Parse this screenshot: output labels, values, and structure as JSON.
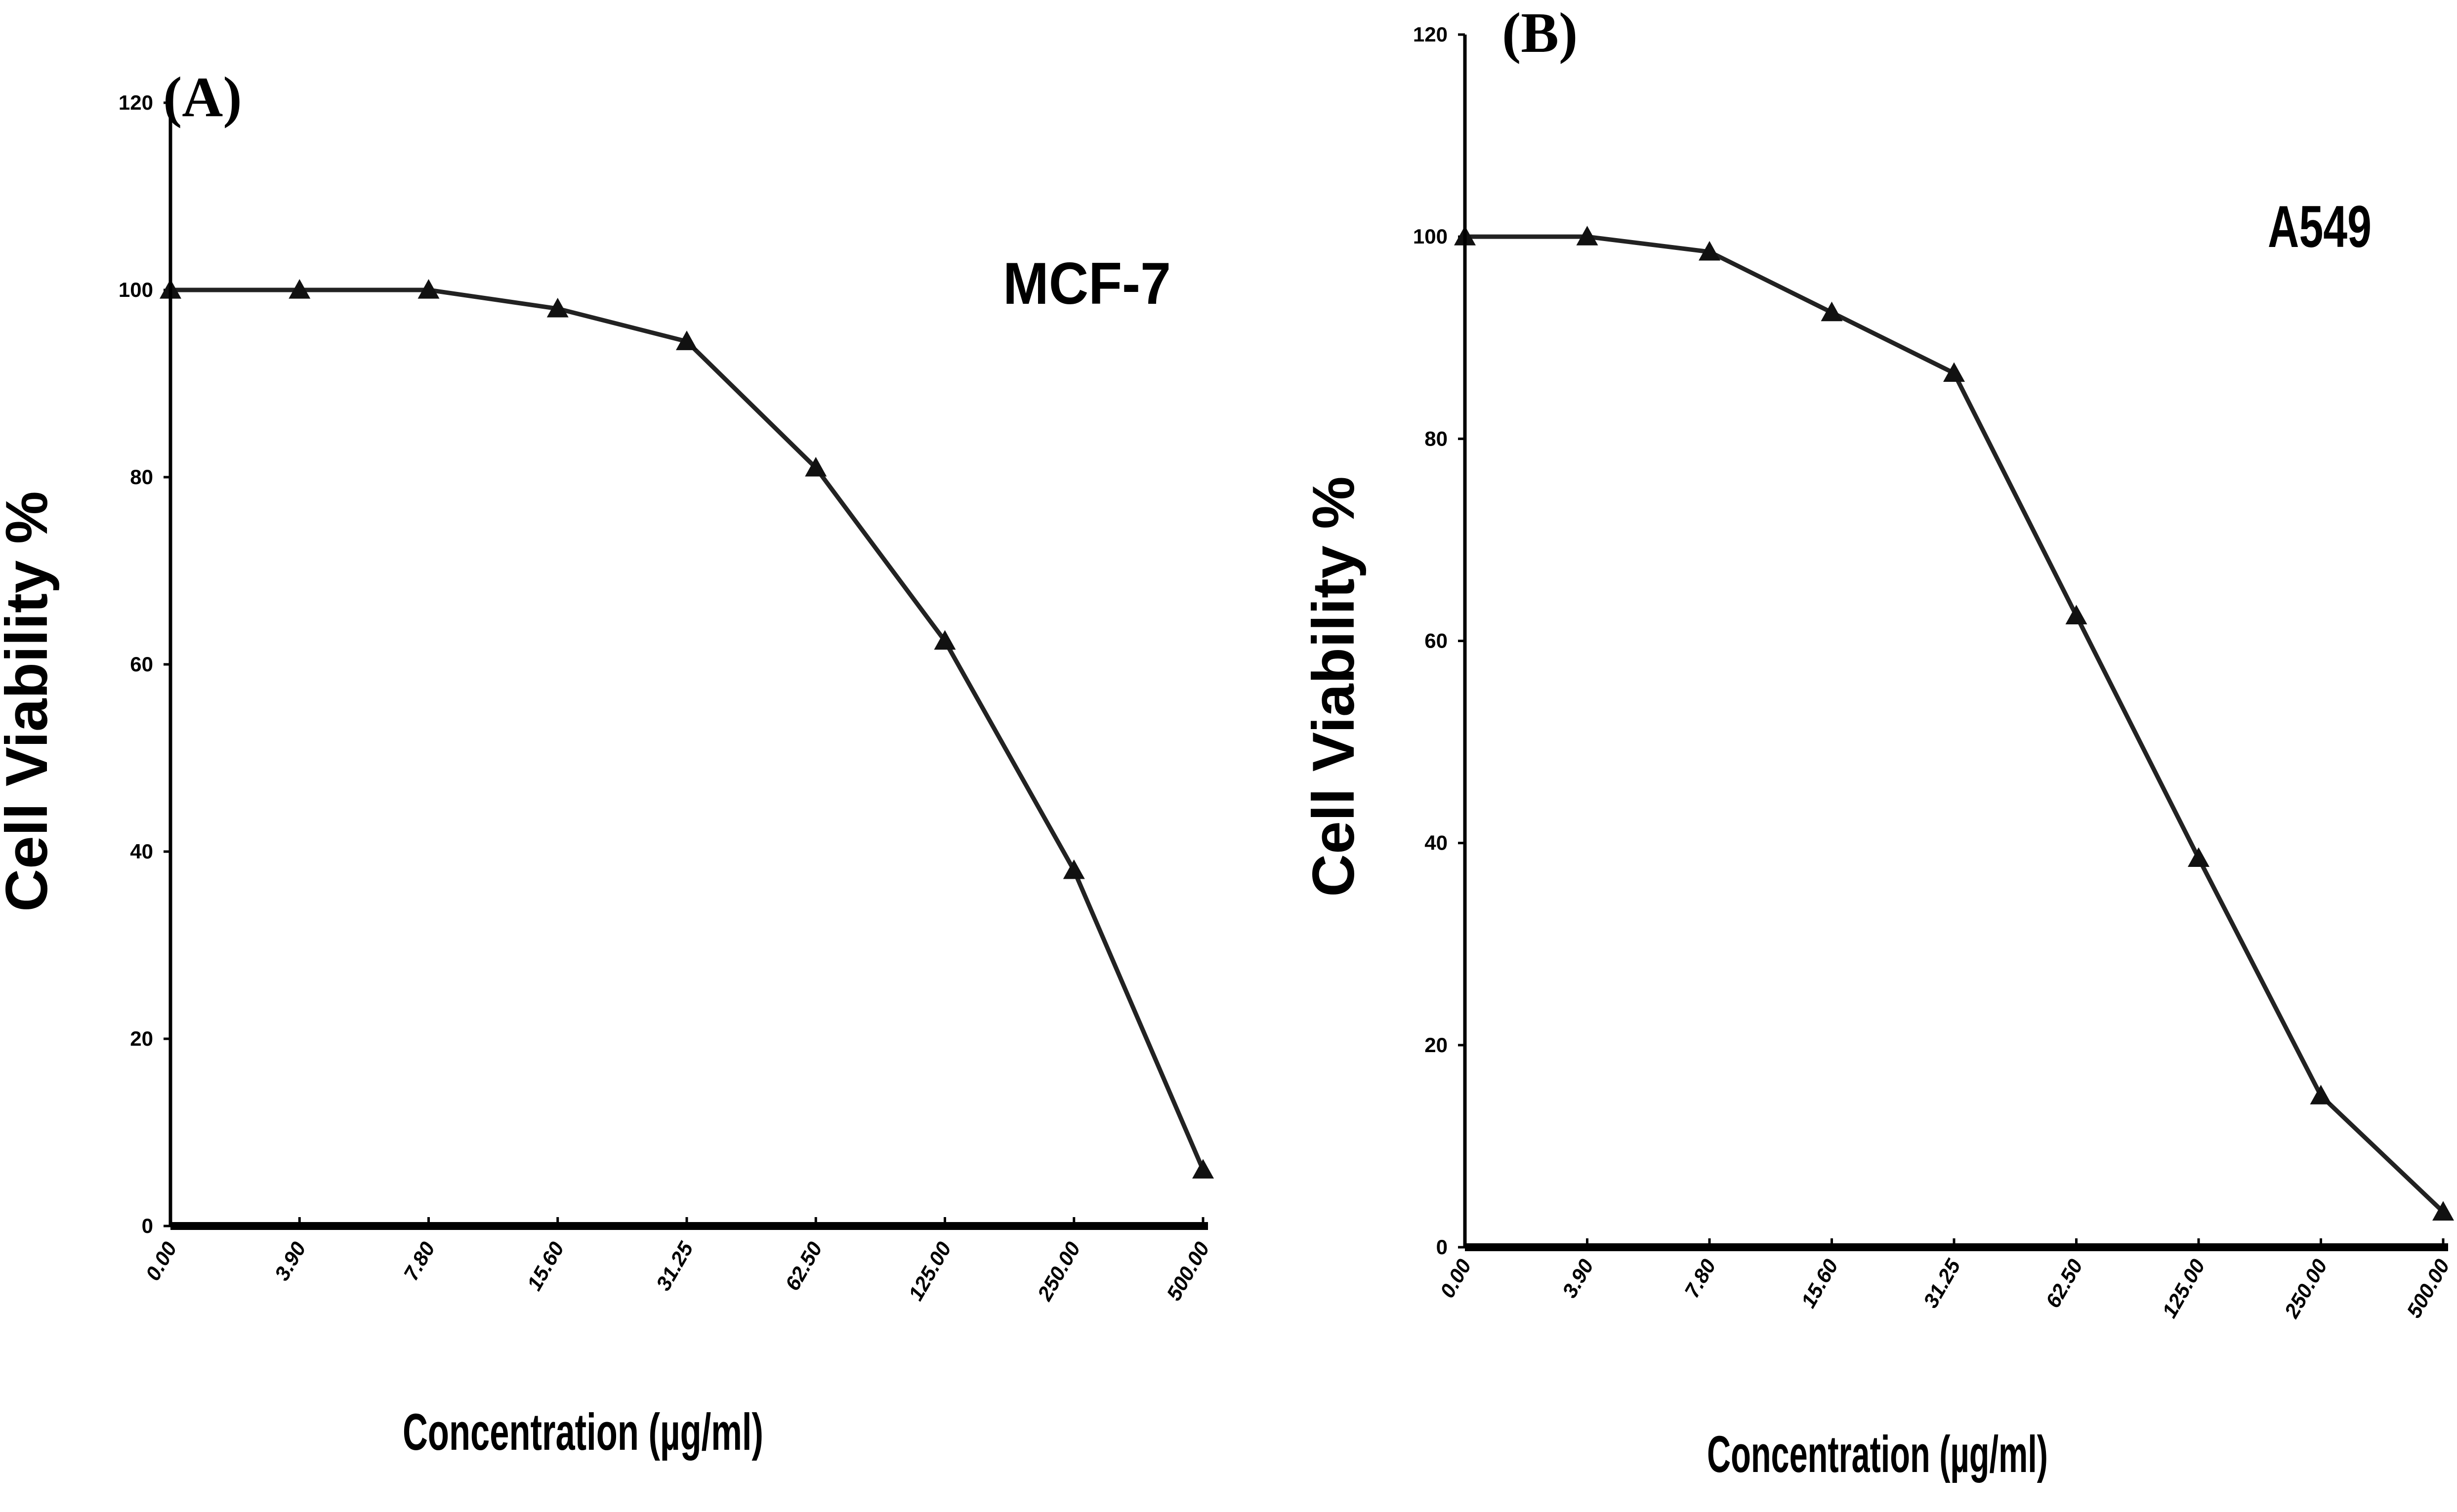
{
  "chart_data": [
    {
      "type": "line",
      "panel_label": "(A)",
      "annotation": "MCF-7",
      "title": "",
      "xlabel": "Concentration (µg/ml)",
      "ylabel": "Cell Viability %",
      "categories": [
        "0.00",
        "3.90",
        "7.80",
        "15.60",
        "31.25",
        "62.50",
        "125.00",
        "250.00",
        "500.00"
      ],
      "values": [
        100,
        100,
        100,
        98,
        94.5,
        81,
        62.5,
        38,
        6
      ],
      "yticks": [
        "0",
        "20",
        "40",
        "60",
        "80",
        "100",
        "120"
      ],
      "ylim": [
        0,
        120
      ],
      "marker": "triangle",
      "grid": false,
      "line_color": "#222222"
    },
    {
      "type": "line",
      "panel_label": "(B)",
      "annotation": "A549",
      "title": "",
      "xlabel": "Concentration (µg/ml)",
      "ylabel": "Cell Viability %",
      "categories": [
        "0.00",
        "3.90",
        "7.80",
        "15.60",
        "31.25",
        "62.50",
        "125.00",
        "250.00",
        "500.00"
      ],
      "values": [
        100,
        100,
        98.5,
        92.5,
        86.5,
        62.5,
        38.5,
        15,
        3.5
      ],
      "yticks": [
        "0",
        "20",
        "40",
        "60",
        "80",
        "100",
        "120"
      ],
      "ylim": [
        0,
        120
      ],
      "marker": "triangle",
      "grid": false,
      "line_color": "#222222"
    }
  ]
}
